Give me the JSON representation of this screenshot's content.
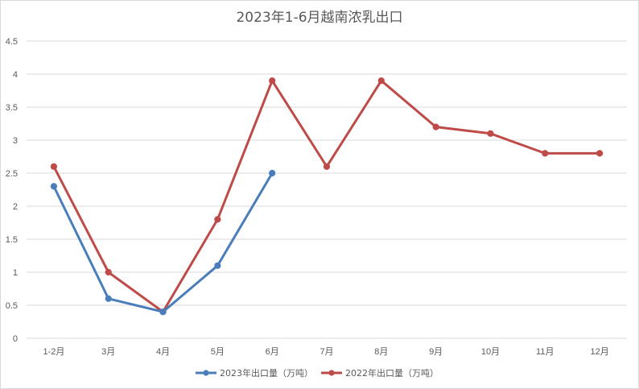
{
  "chart_data": {
    "type": "line",
    "title": "2023年1-6月越南浓乳出口",
    "categories": [
      "1-2月",
      "3月",
      "4月",
      "5月",
      "6月",
      "7月",
      "8月",
      "9月",
      "10月",
      "11月",
      "12月"
    ],
    "ylim": [
      0,
      4.5
    ],
    "yticks": [
      "0",
      "0.5",
      "1",
      "1.5",
      "2",
      "2.5",
      "3",
      "3.5",
      "4",
      "4.5"
    ],
    "grid": true,
    "legend": "bottom",
    "series": [
      {
        "name": "2023年出口量（万吨）",
        "color": "#4a7ebb",
        "values": [
          2.3,
          0.6,
          0.4,
          1.1,
          2.5,
          null,
          null,
          null,
          null,
          null,
          null
        ]
      },
      {
        "name": "2022年出口量（万吨）",
        "color": "#be4b48",
        "values": [
          2.6,
          1.0,
          0.4,
          1.8,
          3.9,
          2.6,
          3.9,
          3.2,
          3.1,
          2.8,
          2.8
        ]
      }
    ]
  }
}
